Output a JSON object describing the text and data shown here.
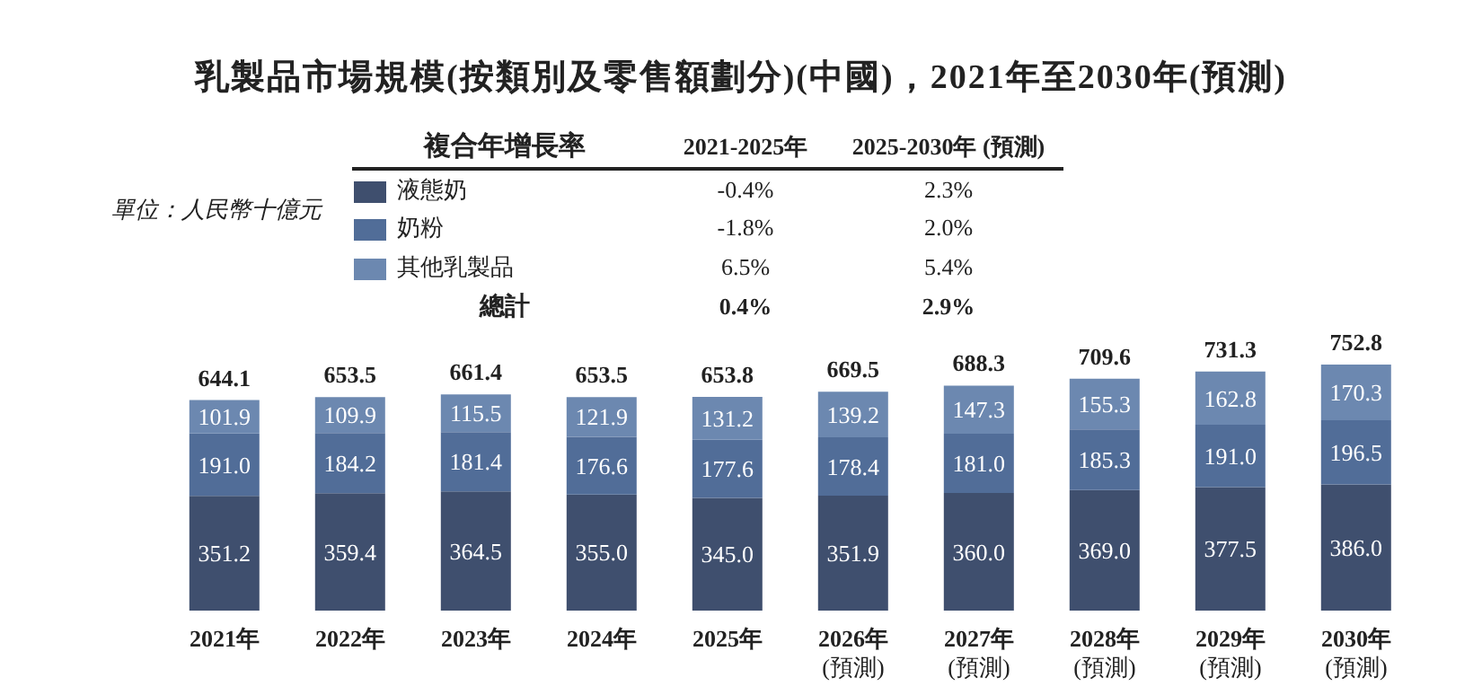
{
  "chart_data": {
    "type": "bar",
    "title": "乳製品市場規模(按類別及零售額劃分)(中國)，2021年至2030年(預測)",
    "legend_title": "複合年增長率",
    "stacked": true,
    "legend": "top",
    "categories": [
      "2021年",
      "2022年",
      "2023年",
      "2024年",
      "2025年",
      "2026年\n(預測)",
      "2027年\n(預測)",
      "2028年\n(預測)",
      "2029年\n(預測)",
      "2030年\n(預測)"
    ],
    "series": [
      {
        "name": "液態奶",
        "color": "#3f4f6e",
        "values": [
          351.2,
          359.4,
          364.5,
          355.0,
          345.0,
          351.9,
          360.0,
          369.0,
          377.5,
          386.0
        ],
        "value_labels": [
          "351.2",
          "359.4",
          "364.5",
          "355.0",
          "345.0",
          "351.9",
          "360.0",
          "369.0",
          "377.5",
          "386.0"
        ]
      },
      {
        "name": "奶粉",
        "color": "#516d98",
        "values": [
          191.0,
          184.2,
          181.4,
          176.6,
          177.6,
          178.4,
          181.0,
          185.3,
          191.0,
          196.5
        ],
        "value_labels": [
          "191.0",
          "184.2",
          "181.4",
          "176.6",
          "177.6",
          "178.4",
          "181.0",
          "185.3",
          "191.0",
          "196.5"
        ]
      },
      {
        "name": "其他乳製品",
        "color": "#6c88b0",
        "values": [
          101.9,
          109.9,
          115.5,
          121.9,
          131.2,
          139.2,
          147.3,
          155.3,
          162.8,
          170.3
        ],
        "value_labels": [
          "101.9",
          "109.9",
          "115.5",
          "121.9",
          "131.2",
          "139.2",
          "147.3",
          "155.3",
          "162.8",
          "170.3"
        ]
      }
    ],
    "totals": [
      "644.1",
      "653.5",
      "661.4",
      "653.5",
      "653.8",
      "669.5",
      "688.3",
      "709.6",
      "731.3",
      "752.8"
    ],
    "annotations": [
      "單位：人民幣十億元",
      "2021-2025年",
      "2025-2030年 (預測)",
      "-0.4%",
      "2.3%",
      "-1.8%",
      "2.0%",
      "6.5%",
      "5.4%",
      "總計",
      "0.4%",
      "2.9%"
    ]
  }
}
